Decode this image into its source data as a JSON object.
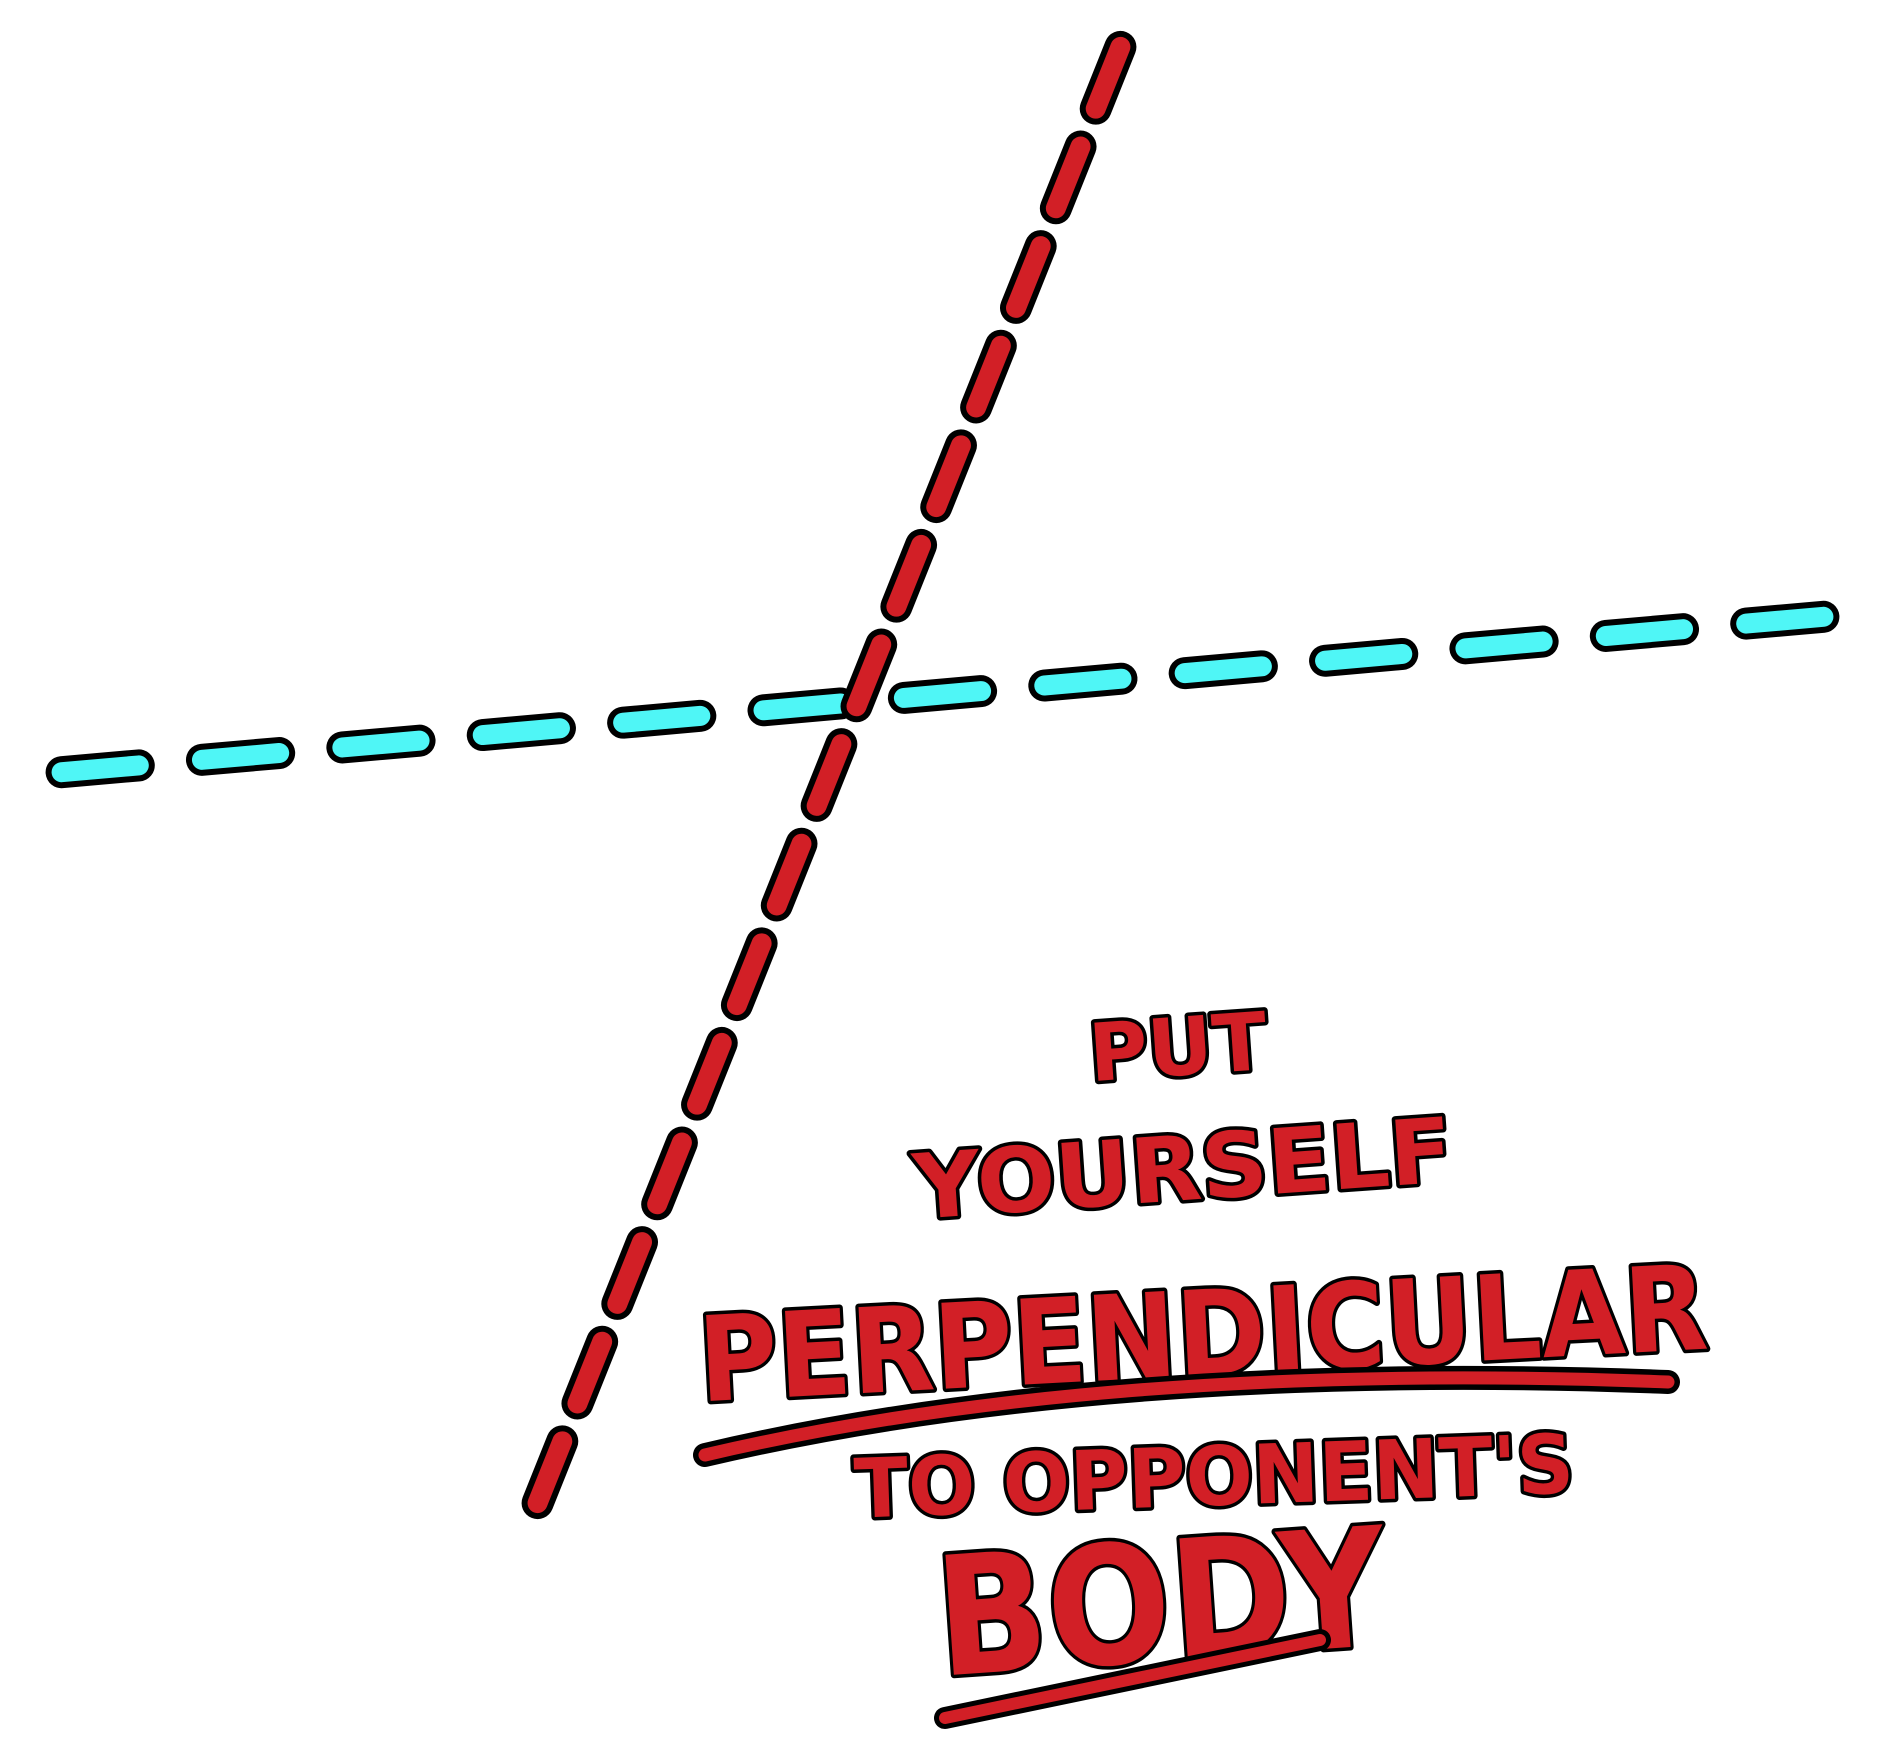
{
  "caption": {
    "line1": "PUT",
    "line2": "YOURSELF",
    "line3": "PERPENDICULAR",
    "line4": "TO OPPONENT'S",
    "line5": "BODY"
  },
  "colors": {
    "red": "#d21f26",
    "cyan": "#4ff6f6",
    "outline": "#000000",
    "background": "#ffffff"
  }
}
